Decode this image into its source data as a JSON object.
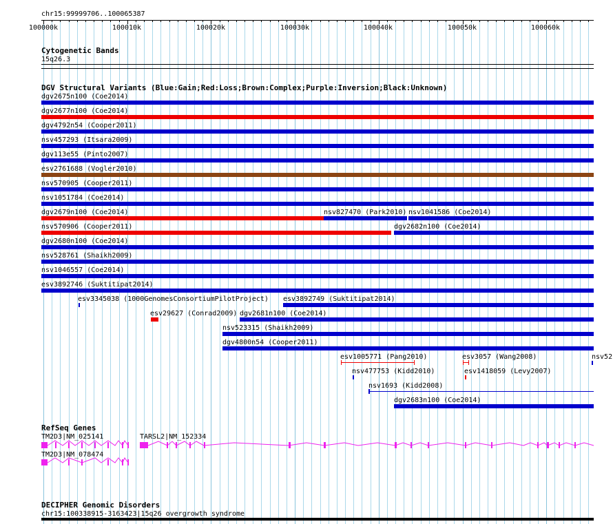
{
  "coord_label": "chr15:99999706..100065387",
  "ruler": {
    "ticks": [
      "100000k",
      "100010k",
      "100020k",
      "100030k",
      "100040k",
      "100050k",
      "100060k"
    ]
  },
  "cyto": {
    "title": "Cytogenetic Bands",
    "band": "15q26.3"
  },
  "dgv": {
    "title": "DGV Structural Variants (Blue:Gain;Red:Loss;Brown:Complex;Purple:Inversion;Black:Unknown)",
    "colors": {
      "gain": "#0000cc",
      "loss": "#ee0000",
      "complex": "#8b4513",
      "unknown": "#000000"
    },
    "features": [
      {
        "label": "dgv2675n100 (Coe2014)",
        "type": "gain"
      },
      {
        "label": "dgv2677n100 (Coe2014)",
        "type": "loss"
      },
      {
        "label": "dgv4792n54 (Cooper2011)",
        "type": "gain"
      },
      {
        "label": "nsv457293 (Itsara2009)",
        "type": "gain"
      },
      {
        "label": "dgv113e55 (Pinto2007)",
        "type": "gain"
      },
      {
        "label": "esv2761688 (Vogler2010)",
        "type": "complex"
      },
      {
        "label": "nsv570905 (Cooper2011)",
        "type": "gain"
      },
      {
        "label": "nsv1051784 (Coe2014)",
        "type": "gain"
      },
      {
        "label": "dgv2679n100 (Coe2014)",
        "type": "loss"
      },
      {
        "label": "nsv827470 (Park2010)",
        "type": "gain"
      },
      {
        "label": "nsv1041586 (Coe2014)",
        "type": "gain"
      },
      {
        "label": "nsv570906 (Cooper2011)",
        "type": "loss"
      },
      {
        "label": "dgv2682n100 (Coe2014)",
        "type": "gain"
      },
      {
        "label": "dgv2680n100 (Coe2014)",
        "type": "gain"
      },
      {
        "label": "nsv528761 (Shaikh2009)",
        "type": "gain"
      },
      {
        "label": "nsv1046557 (Coe2014)",
        "type": "gain"
      },
      {
        "label": "esv3892746 (Suktitipat2014)",
        "type": "gain"
      },
      {
        "label": "esv3345038 (1000GenomesConsortiumPilotProject)",
        "type": "gain"
      },
      {
        "label": "esv3892749 (Suktitipat2014)",
        "type": "gain"
      },
      {
        "label": "esv29627 (Conrad2009)",
        "type": "loss"
      },
      {
        "label": "dgv2681n100 (Coe2014)",
        "type": "gain"
      },
      {
        "label": "nsv523315 (Shaikh2009)",
        "type": "gain"
      },
      {
        "label": "dgv4800n54 (Cooper2011)",
        "type": "gain"
      },
      {
        "label": "esv1005771 (Pang2010)",
        "type": "loss"
      },
      {
        "label": "esv3057 (Wang2008)",
        "type": "loss"
      },
      {
        "label": "nsv52",
        "type": "gain"
      },
      {
        "label": "nsv477753 (Kidd2010)",
        "type": "gain"
      },
      {
        "label": "esv1418059 (Levy2007)",
        "type": "loss"
      },
      {
        "label": "nsv1693 (Kidd2008)",
        "type": "gain"
      },
      {
        "label": "dgv2683n100 (Coe2014)",
        "type": "gain"
      }
    ]
  },
  "refseq": {
    "title": "RefSeq Genes",
    "color": "#ee22ee",
    "genes": [
      {
        "label": "TM2D3|NM_025141"
      },
      {
        "label": "TARSL2|NM_152334"
      },
      {
        "label": "TM2D3|NM_078474"
      }
    ]
  },
  "decipher": {
    "title": "DECIPHER Genomic Disorders",
    "features": [
      {
        "label": "chr15:100338915-3163423|15q26 overgrowth syndrome"
      }
    ]
  }
}
